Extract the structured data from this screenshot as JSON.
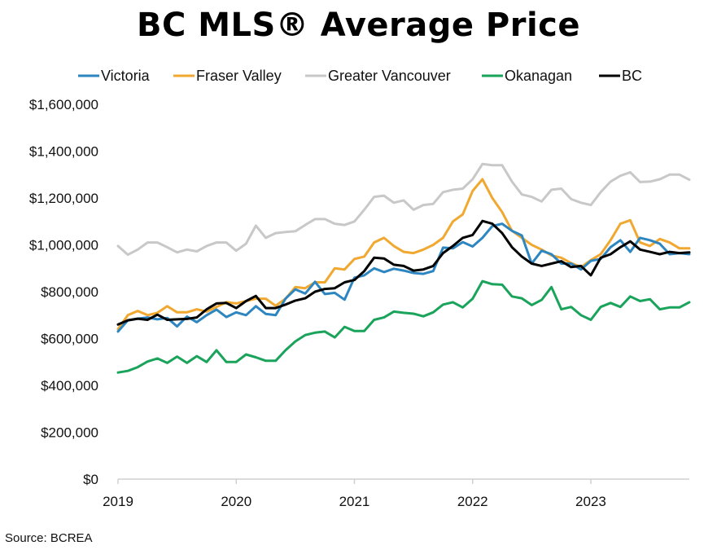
{
  "chart_data": {
    "type": "line",
    "title": "BC MLS® Average Price",
    "xlabel": "",
    "ylabel": "",
    "ylim": [
      0,
      1600000
    ],
    "xlim": [
      2019.0,
      2023.8333
    ],
    "y_ticks": [
      0,
      200000,
      400000,
      600000,
      800000,
      1000000,
      1200000,
      1400000,
      1600000
    ],
    "y_tick_labels": [
      "$0",
      "$200,000",
      "$400,000",
      "$600,000",
      "$800,000",
      "$1,000,000",
      "$1,200,000",
      "$1,400,000",
      "$1,600,000"
    ],
    "x_ticks": [
      2019,
      2020,
      2021,
      2022,
      2023
    ],
    "x_tick_labels": [
      "2019",
      "2020",
      "2021",
      "2022",
      "2023"
    ],
    "grid": false,
    "legend_position": "top",
    "start_year": 2019,
    "interval": "monthly",
    "series": [
      {
        "name": "Victoria",
        "color": "#2e86c1",
        "values": [
          630000,
          678000,
          685000,
          690000,
          682000,
          688000,
          652000,
          694000,
          670000,
          700000,
          724000,
          692000,
          712000,
          700000,
          738000,
          705000,
          700000,
          770000,
          810000,
          792000,
          842000,
          790000,
          795000,
          766000,
          860000,
          870000,
          900000,
          884000,
          898000,
          890000,
          880000,
          876000,
          888000,
          988000,
          985000,
          1012000,
          993000,
          1030000,
          1080000,
          1090000,
          1060000,
          1040000,
          920000,
          975000,
          960000,
          920000,
          920000,
          895000,
          932000,
          940000,
          990000,
          1020000,
          970000,
          1030000,
          1020000,
          1005000,
          960000,
          965000,
          960000
        ]
      },
      {
        "name": "Fraser Valley",
        "color": "#f0a830",
        "values": [
          640000,
          700000,
          718000,
          700000,
          710000,
          738000,
          712000,
          712000,
          725000,
          715000,
          735000,
          755000,
          750000,
          760000,
          770000,
          770000,
          740000,
          770000,
          820000,
          815000,
          840000,
          840000,
          900000,
          895000,
          940000,
          950000,
          1010000,
          1030000,
          995000,
          970000,
          965000,
          980000,
          1000000,
          1030000,
          1100000,
          1130000,
          1230000,
          1280000,
          1200000,
          1140000,
          1060000,
          1030000,
          1000000,
          980000,
          955000,
          945000,
          922000,
          905000,
          935000,
          960000,
          1020000,
          1090000,
          1105000,
          1010000,
          995000,
          1025000,
          1010000,
          985000,
          985000
        ]
      },
      {
        "name": "Greater Vancouver",
        "color": "#c8c8c8",
        "values": [
          995000,
          958000,
          980000,
          1010000,
          1010000,
          990000,
          968000,
          980000,
          972000,
          995000,
          1010000,
          1010000,
          975000,
          1005000,
          1082000,
          1030000,
          1050000,
          1055000,
          1058000,
          1085000,
          1110000,
          1110000,
          1090000,
          1085000,
          1100000,
          1150000,
          1205000,
          1210000,
          1180000,
          1190000,
          1150000,
          1170000,
          1175000,
          1225000,
          1235000,
          1240000,
          1280000,
          1345000,
          1340000,
          1340000,
          1270000,
          1215000,
          1205000,
          1185000,
          1235000,
          1240000,
          1195000,
          1180000,
          1170000,
          1225000,
          1270000,
          1295000,
          1310000,
          1268000,
          1270000,
          1280000,
          1300000,
          1300000,
          1278000
        ]
      },
      {
        "name": "Okanagan",
        "color": "#1aa35a",
        "values": [
          455000,
          462000,
          478000,
          502000,
          515000,
          496000,
          523000,
          496000,
          525000,
          500000,
          550000,
          500000,
          500000,
          532000,
          520000,
          505000,
          505000,
          550000,
          588000,
          615000,
          625000,
          630000,
          605000,
          650000,
          632000,
          632000,
          680000,
          690000,
          715000,
          710000,
          706000,
          695000,
          712000,
          745000,
          755000,
          733000,
          770000,
          845000,
          832000,
          830000,
          780000,
          772000,
          743000,
          765000,
          820000,
          725000,
          735000,
          700000,
          680000,
          735000,
          752000,
          735000,
          780000,
          760000,
          768000,
          725000,
          733000,
          733000,
          755000
        ]
      },
      {
        "name": "BC",
        "color": "#000000",
        "values": [
          660000,
          678000,
          685000,
          680000,
          702000,
          680000,
          682000,
          684000,
          690000,
          725000,
          750000,
          752000,
          730000,
          760000,
          782000,
          730000,
          730000,
          745000,
          762000,
          772000,
          800000,
          812000,
          815000,
          840000,
          850000,
          888000,
          945000,
          942000,
          915000,
          910000,
          890000,
          895000,
          910000,
          965000,
          995000,
          1030000,
          1042000,
          1102000,
          1090000,
          1050000,
          990000,
          950000,
          920000,
          910000,
          920000,
          930000,
          905000,
          910000,
          870000,
          945000,
          960000,
          990000,
          1015000,
          980000,
          970000,
          960000,
          970000,
          965000,
          968000
        ]
      }
    ]
  },
  "source": "Source: BCREA"
}
